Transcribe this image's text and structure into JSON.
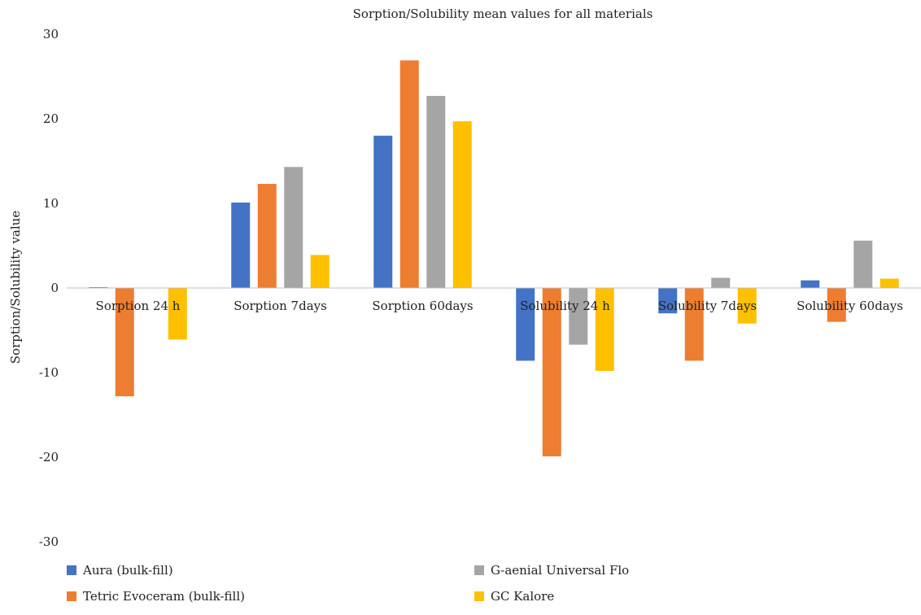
{
  "chart_data": {
    "type": "bar",
    "title": "Sorption/Solubility mean values for all materials",
    "xlabel": "",
    "ylabel": "Sorption/Solubility value",
    "ylim": [
      -30,
      30
    ],
    "yticks": [
      30,
      20,
      10,
      0,
      -10,
      -20,
      -30
    ],
    "grid": false,
    "legend_position": "bottom",
    "categories": [
      "Sorption 24 h",
      "Sorption 7days",
      "Sorption 60days",
      "Solubility 24 h",
      "Solubility 7days",
      "Solubility 60days"
    ],
    "series": [
      {
        "name": "Aura (bulk-fill)",
        "color": "#4472c4",
        "values": [
          0.1,
          10.1,
          18.0,
          -8.6,
          -3.0,
          0.9
        ]
      },
      {
        "name": "Tetric Evoceram (bulk-fill)",
        "color": "#ed7d31",
        "values": [
          -12.8,
          12.3,
          26.9,
          -19.9,
          -8.6,
          -4.0
        ]
      },
      {
        "name": "G-aenial Universal Flo",
        "color": "#a5a5a5",
        "values": [
          0,
          14.3,
          22.7,
          -6.7,
          1.2,
          5.6
        ]
      },
      {
        "name": "GC Kalore",
        "color": "#ffc000",
        "values": [
          -6.1,
          3.9,
          19.7,
          -9.8,
          -4.2,
          1.1
        ]
      }
    ]
  }
}
